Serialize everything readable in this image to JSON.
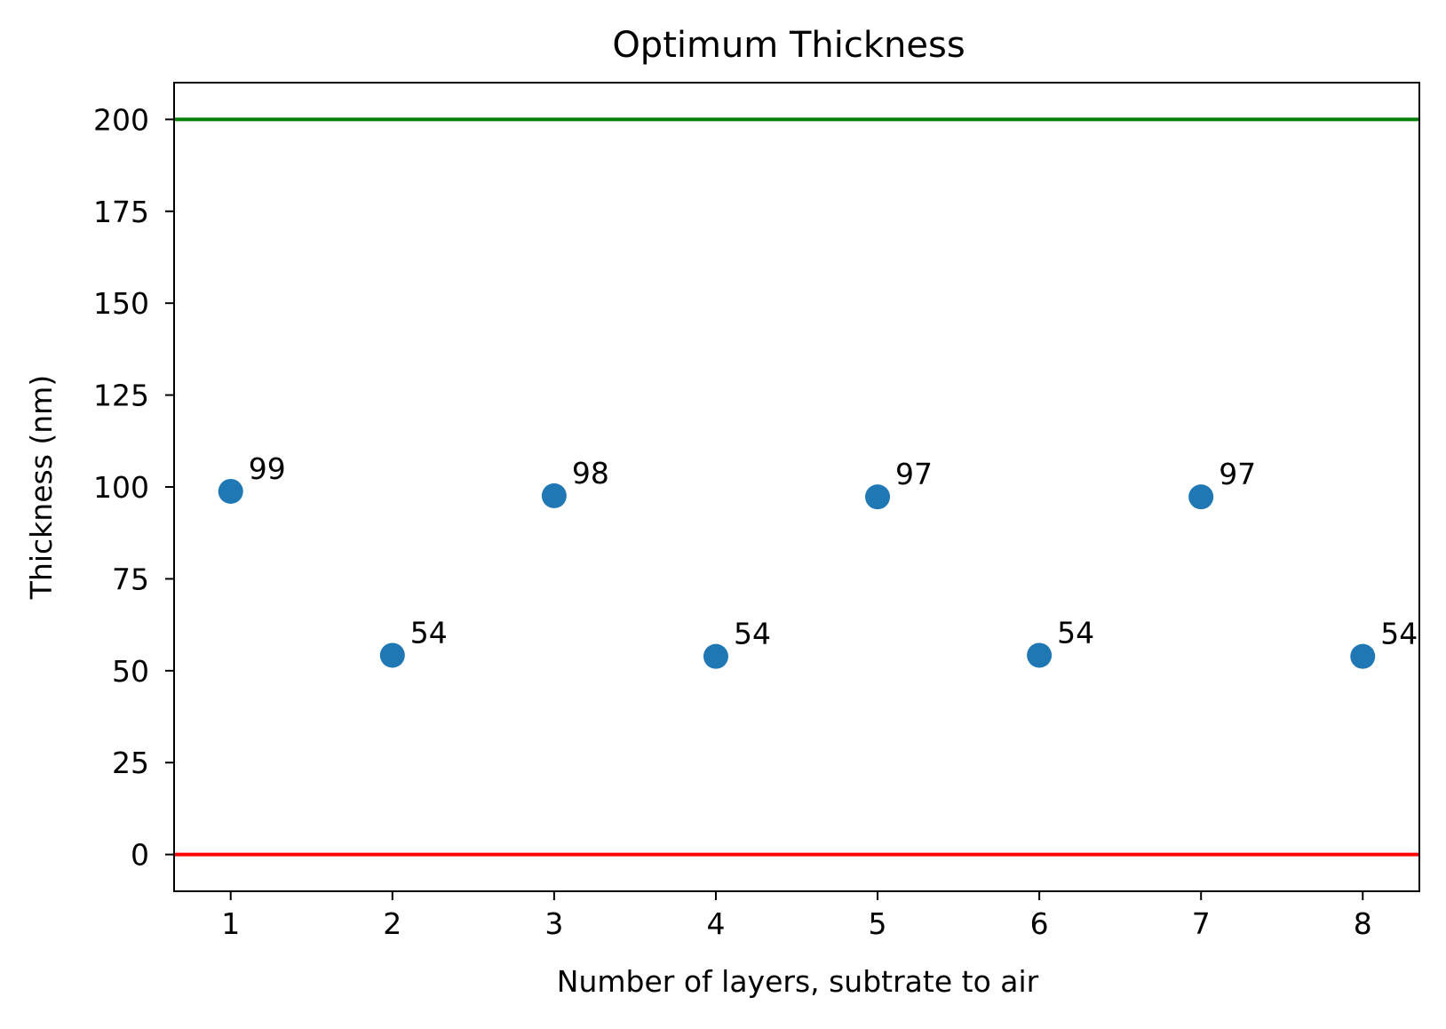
{
  "chart_data": {
    "type": "scatter",
    "title": "Optimum Thickness",
    "xlabel": "Number of layers, subtrate to air",
    "ylabel": "Thickness (nm)",
    "xlim": [
      0.65,
      8.35
    ],
    "ylim": [
      -10,
      210
    ],
    "x_ticks": [
      1,
      2,
      3,
      4,
      5,
      6,
      7,
      8
    ],
    "y_ticks": [
      0,
      25,
      50,
      75,
      100,
      125,
      150,
      175,
      200
    ],
    "grid": false,
    "legend": "none",
    "series": [
      {
        "x": [
          1,
          2,
          3,
          4,
          5,
          6,
          7,
          8
        ],
        "y": [
          98.8,
          54.2,
          97.6,
          53.9,
          97.3,
          54.2,
          97.3,
          53.9
        ],
        "labels": [
          "99",
          "54",
          "98",
          "54",
          "97",
          "54",
          "97",
          "54"
        ],
        "color": "#1f77b4"
      }
    ],
    "hlines": [
      {
        "y": 200,
        "color": "#008000"
      },
      {
        "y": 0,
        "color": "#ff0000"
      }
    ]
  }
}
